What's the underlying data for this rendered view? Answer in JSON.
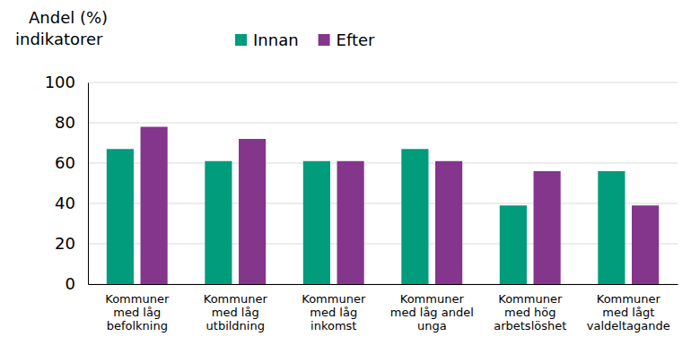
{
  "chart_data": {
    "type": "bar",
    "y_label": "Andel (%)\nindikatorer",
    "categories": [
      "Kommuner\nmed låg\nbefolkning",
      "Kommuner\nmed låg\nutbildning",
      "Kommuner\nmed låg\ninkomst",
      "Kommuner\nmed låg andel\nunga",
      "Kommuner\nmed hög\narbetslöshet",
      "Kommuner\nmed lågt\nvaldeltagande"
    ],
    "series": [
      {
        "name": "Innan",
        "color": "#009c7c",
        "values": [
          67,
          61,
          61,
          67,
          39,
          56
        ]
      },
      {
        "name": "Efter",
        "color": "#84358c",
        "values": [
          78,
          72,
          61,
          61,
          56,
          39
        ]
      }
    ],
    "ylim": [
      0,
      100
    ],
    "yticks": [
      0,
      20,
      40,
      60,
      80,
      100
    ],
    "grid": true,
    "legend": "top"
  }
}
